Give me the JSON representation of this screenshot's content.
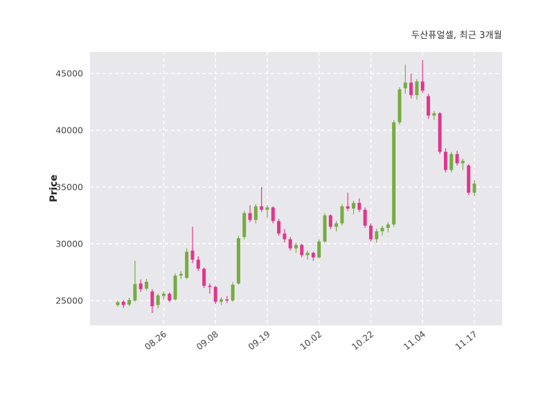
{
  "title": "두산퓨얼셀, 최근 3개월",
  "ylabel": "Price",
  "chart_data": {
    "type": "candlestick",
    "title": "두산퓨얼셀, 최근 3개월",
    "ylabel": "Price",
    "ylim": [
      22800,
      46900
    ],
    "yticks": [
      25000,
      30000,
      35000,
      40000,
      45000
    ],
    "xticks": [
      {
        "label": "08.26",
        "index": 8
      },
      {
        "label": "09.08",
        "index": 17
      },
      {
        "label": "09.19",
        "index": 26
      },
      {
        "label": "10.02",
        "index": 35
      },
      {
        "label": "10.22",
        "index": 44
      },
      {
        "label": "11.04",
        "index": 53
      },
      {
        "label": "11.17",
        "index": 62
      }
    ],
    "grid": true,
    "legend": "none",
    "colors": {
      "up": "#77ab41",
      "down": "#e0368c",
      "plot_bg": "#e8e8ec",
      "grid": "#ffffff",
      "tick_text": "#444444",
      "title_text": "#333333"
    },
    "ohlc_format": [
      "open",
      "high",
      "low",
      "close"
    ],
    "candles": [
      [
        24600,
        25000,
        24450,
        24850
      ],
      [
        24900,
        25050,
        24350,
        24600
      ],
      [
        24650,
        25250,
        24500,
        25050
      ],
      [
        25000,
        28500,
        24900,
        26450
      ],
      [
        26500,
        26850,
        25750,
        26000
      ],
      [
        26050,
        26900,
        25900,
        26650
      ],
      [
        25800,
        26000,
        23900,
        24500
      ],
      [
        24600,
        25600,
        24300,
        25450
      ],
      [
        25400,
        25800,
        25100,
        25600
      ],
      [
        25600,
        25700,
        24850,
        25000
      ],
      [
        25100,
        27400,
        25000,
        27200
      ],
      [
        27200,
        27600,
        26900,
        27350
      ],
      [
        27000,
        29600,
        26900,
        29300
      ],
      [
        29400,
        31500,
        28300,
        28600
      ],
      [
        28600,
        28900,
        27600,
        27800
      ],
      [
        27800,
        27900,
        26100,
        26300
      ],
      [
        26300,
        26500,
        25600,
        26200
      ],
      [
        26200,
        26300,
        24700,
        24900
      ],
      [
        24900,
        25300,
        24600,
        25100
      ],
      [
        25100,
        25400,
        24800,
        25000
      ],
      [
        25000,
        26600,
        24900,
        26400
      ],
      [
        26500,
        30700,
        26400,
        30500
      ],
      [
        30600,
        32900,
        30400,
        32700
      ],
      [
        32700,
        33400,
        31900,
        32100
      ],
      [
        32100,
        33500,
        31800,
        33300
      ],
      [
        33300,
        35000,
        32800,
        33000
      ],
      [
        33000,
        33400,
        32300,
        33200
      ],
      [
        33200,
        33300,
        31800,
        32000
      ],
      [
        32000,
        32200,
        30700,
        30900
      ],
      [
        30900,
        31300,
        30100,
        30400
      ],
      [
        30400,
        30600,
        29400,
        29600
      ],
      [
        29600,
        30100,
        29200,
        29900
      ],
      [
        29900,
        30000,
        28800,
        29000
      ],
      [
        29000,
        29400,
        28600,
        29200
      ],
      [
        29200,
        29300,
        28500,
        28800
      ],
      [
        28800,
        30400,
        28700,
        30200
      ],
      [
        30200,
        32700,
        30100,
        32500
      ],
      [
        32500,
        32600,
        31300,
        31500
      ],
      [
        31500,
        32000,
        31100,
        31800
      ],
      [
        31800,
        33500,
        31600,
        33300
      ],
      [
        33300,
        34500,
        32900,
        33100
      ],
      [
        33100,
        33800,
        32600,
        33600
      ],
      [
        33600,
        34000,
        32800,
        33000
      ],
      [
        33000,
        33200,
        31400,
        31600
      ],
      [
        31600,
        31800,
        30200,
        30400
      ],
      [
        30400,
        31300,
        30100,
        31100
      ],
      [
        31100,
        31600,
        30700,
        31400
      ],
      [
        31400,
        31900,
        31000,
        31700
      ],
      [
        31700,
        40900,
        31500,
        40700
      ],
      [
        40700,
        43800,
        40500,
        43600
      ],
      [
        43700,
        45800,
        43200,
        44200
      ],
      [
        44200,
        45000,
        42800,
        43100
      ],
      [
        43100,
        44500,
        42700,
        44300
      ],
      [
        44300,
        46200,
        43300,
        43500
      ],
      [
        43000,
        43200,
        41000,
        41300
      ],
      [
        41300,
        41700,
        40900,
        41500
      ],
      [
        41500,
        41600,
        37900,
        38100
      ],
      [
        38100,
        38400,
        36300,
        36500
      ],
      [
        36500,
        38100,
        36300,
        37900
      ],
      [
        37900,
        38200,
        36900,
        37100
      ],
      [
        37100,
        37500,
        36500,
        37300
      ],
      [
        36900,
        37000,
        34300,
        34500
      ],
      [
        34500,
        35600,
        34200,
        35300
      ]
    ]
  }
}
